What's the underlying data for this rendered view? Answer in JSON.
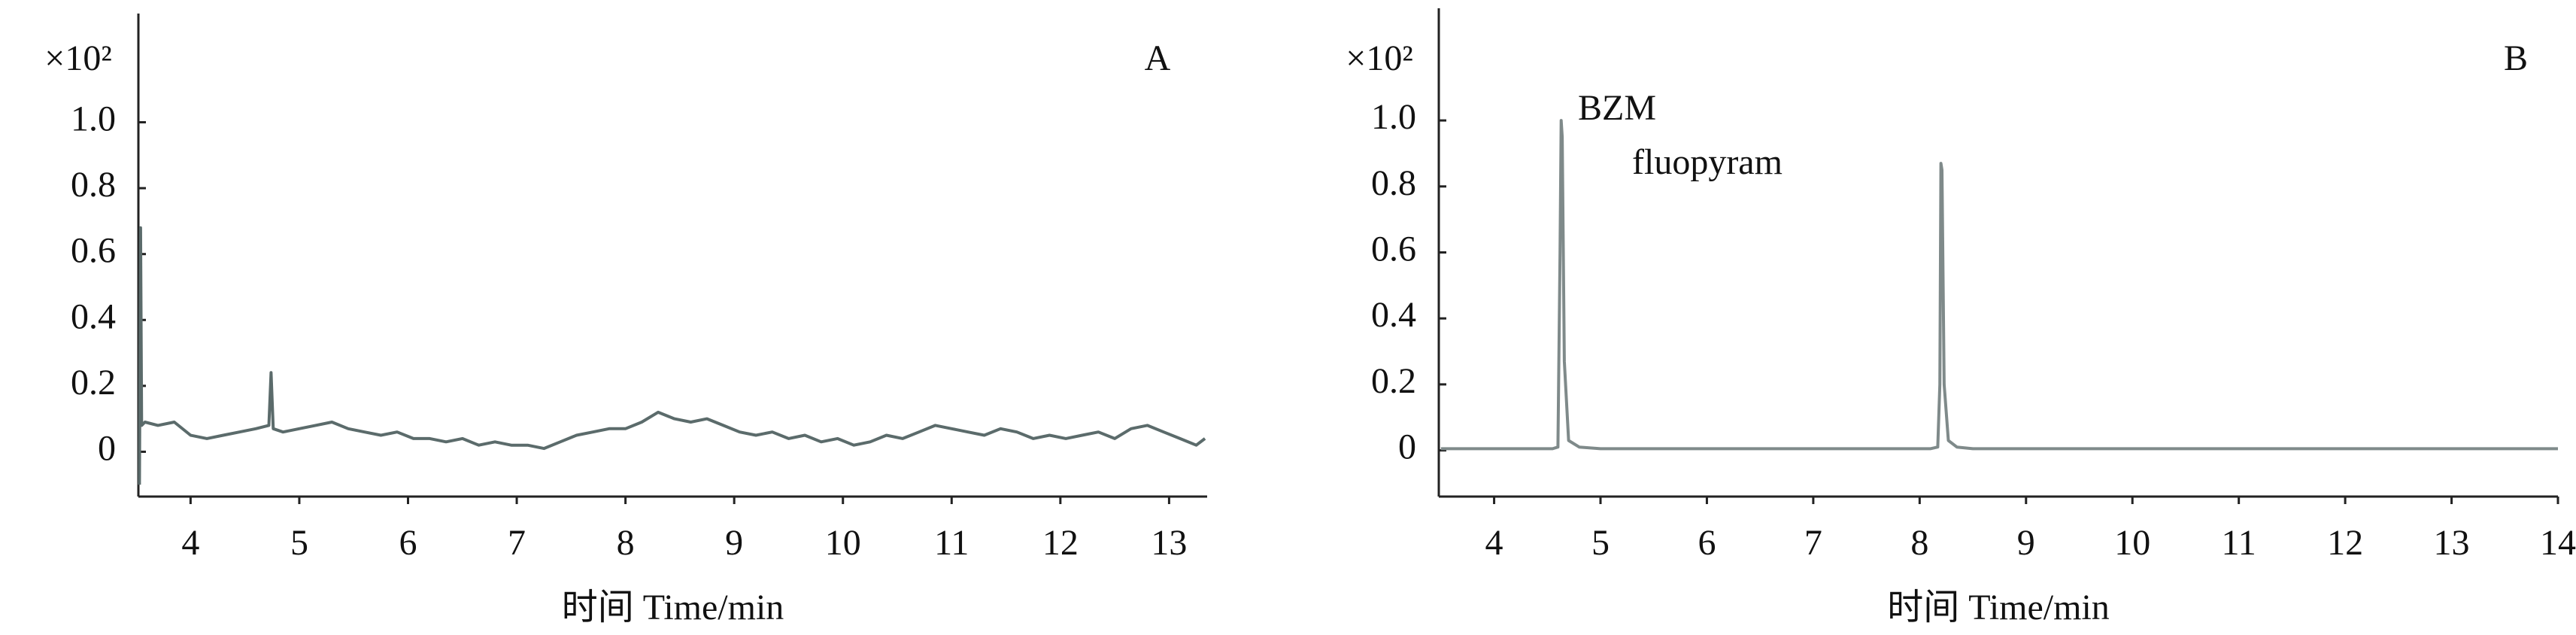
{
  "chart_data": [
    {
      "type": "line",
      "panel_label": "A",
      "y_multiplier": "×10²",
      "x_label": "时间 Time/min",
      "xlim": [
        3.52,
        13.35
      ],
      "xticks": [
        4,
        5,
        6,
        7,
        8,
        9,
        10,
        11,
        12,
        13
      ],
      "ylim": [
        -0.136,
        1.33
      ],
      "yticks": [
        0,
        0.2,
        0.4,
        0.6,
        0.8,
        {
          "value": 1,
          "label": "1.0"
        }
      ],
      "color": "#5b6b6b",
      "x": [
        3.53,
        3.54,
        3.55,
        3.58,
        3.7,
        3.85,
        4.0,
        4.15,
        4.3,
        4.45,
        4.6,
        4.72,
        4.74,
        4.76,
        4.85,
        5.0,
        5.15,
        5.3,
        5.45,
        5.6,
        5.75,
        5.9,
        6.05,
        6.2,
        6.35,
        6.5,
        6.65,
        6.8,
        6.95,
        7.1,
        7.25,
        7.4,
        7.55,
        7.7,
        7.85,
        8.0,
        8.15,
        8.3,
        8.45,
        8.6,
        8.75,
        8.9,
        9.05,
        9.2,
        9.35,
        9.5,
        9.65,
        9.8,
        9.95,
        10.1,
        10.25,
        10.4,
        10.55,
        10.7,
        10.85,
        11.0,
        11.15,
        11.3,
        11.45,
        11.6,
        11.75,
        11.9,
        12.05,
        12.2,
        12.35,
        12.5,
        12.65,
        12.8,
        12.95,
        13.1,
        13.25,
        13.33
      ],
      "values": [
        -0.1,
        0.68,
        0.08,
        0.09,
        0.08,
        0.09,
        0.05,
        0.04,
        0.05,
        0.06,
        0.07,
        0.08,
        0.24,
        0.07,
        0.06,
        0.07,
        0.08,
        0.09,
        0.07,
        0.06,
        0.05,
        0.06,
        0.04,
        0.04,
        0.03,
        0.04,
        0.02,
        0.03,
        0.02,
        0.02,
        0.01,
        0.03,
        0.05,
        0.06,
        0.07,
        0.07,
        0.09,
        0.12,
        0.1,
        0.09,
        0.1,
        0.08,
        0.06,
        0.05,
        0.06,
        0.04,
        0.05,
        0.03,
        0.04,
        0.02,
        0.03,
        0.05,
        0.04,
        0.06,
        0.08,
        0.07,
        0.06,
        0.05,
        0.07,
        0.06,
        0.04,
        0.05,
        0.04,
        0.05,
        0.06,
        0.04,
        0.07,
        0.08,
        0.06,
        0.04,
        0.02,
        0.04
      ]
    },
    {
      "type": "line",
      "panel_label": "B",
      "y_multiplier": "×10²",
      "x_label": "时间 Time/min",
      "xlim": [
        3.48,
        14
      ],
      "xticks": [
        4,
        5,
        6,
        7,
        8,
        9,
        10,
        11,
        12,
        13,
        14
      ],
      "ylim": [
        -0.14,
        1.34
      ],
      "yticks": [
        0,
        0.2,
        0.4,
        0.6,
        0.8,
        {
          "value": 1,
          "label": "1.0"
        }
      ],
      "color": "#7f8a8a",
      "annotations": [
        {
          "text": "BZM"
        },
        {
          "text": "fluopyram"
        }
      ],
      "x": [
        3.5,
        4.55,
        4.6,
        4.62,
        4.63,
        4.64,
        4.66,
        4.7,
        4.8,
        5.0,
        8.1,
        8.17,
        8.19,
        8.2,
        8.21,
        8.23,
        8.27,
        8.35,
        8.5,
        14
      ],
      "values": [
        0.005,
        0.005,
        0.01,
        0.6,
        1.0,
        0.95,
        0.27,
        0.03,
        0.01,
        0.005,
        0.005,
        0.01,
        0.2,
        0.87,
        0.85,
        0.2,
        0.03,
        0.01,
        0.005,
        0.005
      ]
    }
  ]
}
